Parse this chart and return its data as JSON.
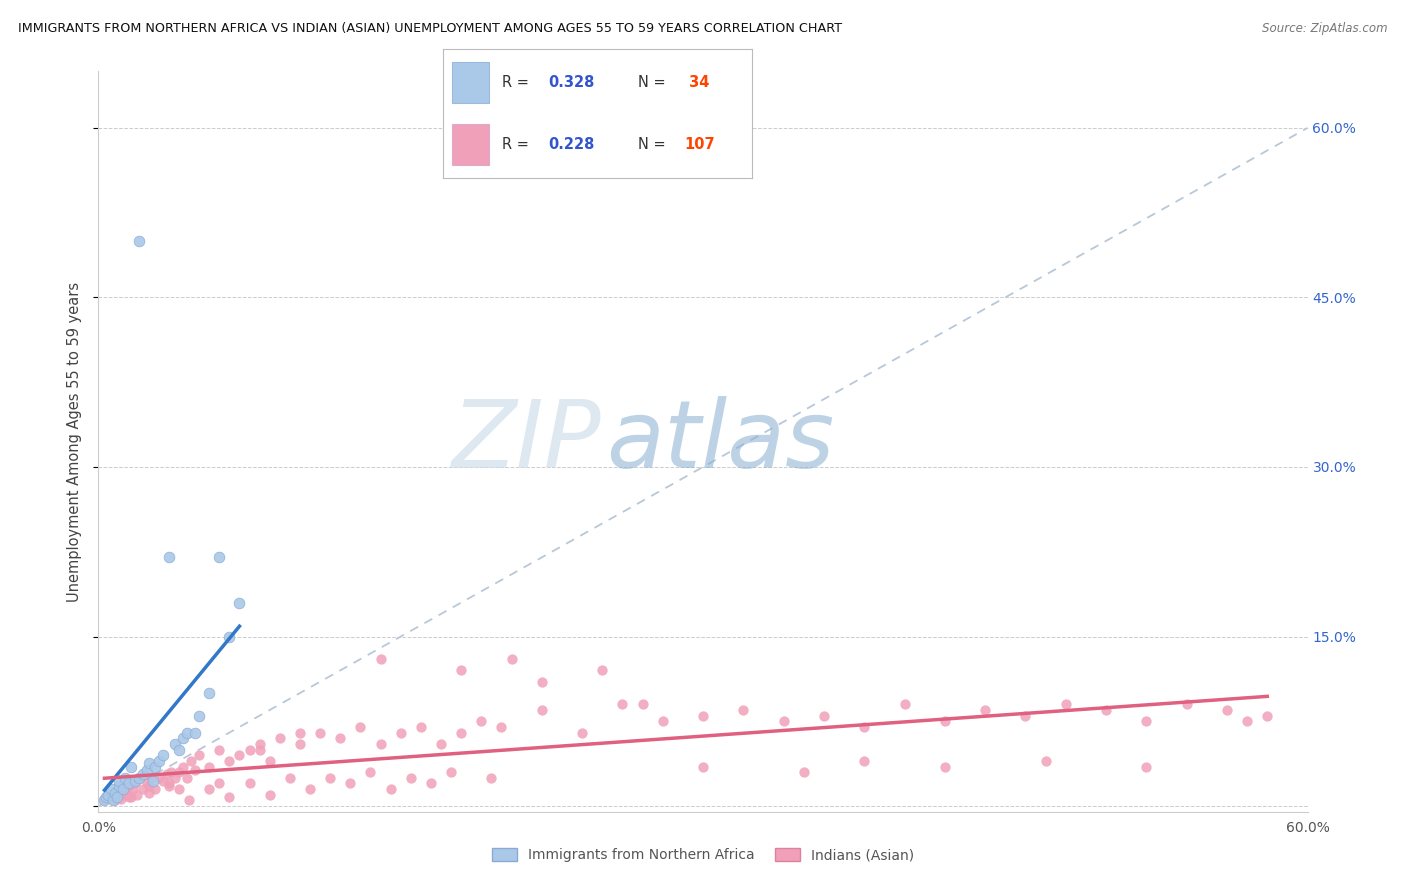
{
  "title": "IMMIGRANTS FROM NORTHERN AFRICA VS INDIAN (ASIAN) UNEMPLOYMENT AMONG AGES 55 TO 59 YEARS CORRELATION CHART",
  "source": "Source: ZipAtlas.com",
  "ylabel": "Unemployment Among Ages 55 to 59 years",
  "y_tick_vals": [
    0.0,
    0.15,
    0.3,
    0.45,
    0.6
  ],
  "y_tick_labels": [
    "",
    "15.0%",
    "30.0%",
    "45.0%",
    "60.0%"
  ],
  "x_lim": [
    0,
    0.6
  ],
  "y_lim": [
    -0.005,
    0.65
  ],
  "blue_R": 0.328,
  "blue_N": 34,
  "pink_R": 0.228,
  "pink_N": 107,
  "blue_label": "Immigrants from Northern Africa",
  "pink_label": "Indians (Asian)",
  "blue_color": "#aac8e8",
  "blue_edge_color": "#88aad4",
  "pink_color": "#f0a0b8",
  "pink_edge_color": "#e080a0",
  "blue_line_color": "#3378c8",
  "pink_line_color": "#e06080",
  "diag_color": "#b8c8d8",
  "watermark_zip": "#c8d8e8",
  "watermark_atlas": "#90b8d8",
  "legend_R_color": "#3355cc",
  "legend_N_color": "#ff4400",
  "blue_scatter_x": [
    0.003,
    0.004,
    0.005,
    0.006,
    0.007,
    0.008,
    0.009,
    0.01,
    0.01,
    0.012,
    0.013,
    0.015,
    0.016,
    0.018,
    0.02,
    0.02,
    0.022,
    0.024,
    0.025,
    0.027,
    0.028,
    0.03,
    0.032,
    0.035,
    0.038,
    0.04,
    0.042,
    0.044,
    0.048,
    0.05,
    0.055,
    0.06,
    0.065,
    0.07
  ],
  "blue_scatter_y": [
    0.005,
    0.008,
    0.01,
    0.015,
    0.005,
    0.012,
    0.008,
    0.018,
    0.022,
    0.015,
    0.025,
    0.02,
    0.035,
    0.022,
    0.025,
    0.5,
    0.028,
    0.032,
    0.038,
    0.022,
    0.035,
    0.04,
    0.045,
    0.22,
    0.055,
    0.05,
    0.06,
    0.065,
    0.065,
    0.08,
    0.1,
    0.22,
    0.15,
    0.18
  ],
  "pink_scatter_x": [
    0.003,
    0.005,
    0.007,
    0.008,
    0.009,
    0.01,
    0.011,
    0.012,
    0.013,
    0.014,
    0.015,
    0.016,
    0.017,
    0.018,
    0.019,
    0.02,
    0.022,
    0.024,
    0.025,
    0.026,
    0.028,
    0.03,
    0.032,
    0.034,
    0.035,
    0.036,
    0.038,
    0.04,
    0.042,
    0.044,
    0.046,
    0.048,
    0.05,
    0.055,
    0.06,
    0.065,
    0.07,
    0.075,
    0.08,
    0.085,
    0.09,
    0.1,
    0.11,
    0.12,
    0.13,
    0.14,
    0.15,
    0.16,
    0.17,
    0.18,
    0.19,
    0.2,
    0.22,
    0.24,
    0.26,
    0.28,
    0.3,
    0.32,
    0.34,
    0.36,
    0.38,
    0.4,
    0.42,
    0.44,
    0.46,
    0.48,
    0.5,
    0.52,
    0.54,
    0.56,
    0.58,
    0.008,
    0.015,
    0.025,
    0.035,
    0.045,
    0.055,
    0.065,
    0.075,
    0.085,
    0.095,
    0.105,
    0.115,
    0.125,
    0.135,
    0.145,
    0.155,
    0.165,
    0.175,
    0.195,
    0.205,
    0.25,
    0.3,
    0.35,
    0.38,
    0.42,
    0.47,
    0.52,
    0.57,
    0.04,
    0.06,
    0.08,
    0.1,
    0.14,
    0.18,
    0.22,
    0.27
  ],
  "pink_scatter_y": [
    0.005,
    0.008,
    0.005,
    0.01,
    0.008,
    0.012,
    0.006,
    0.015,
    0.01,
    0.012,
    0.018,
    0.008,
    0.015,
    0.02,
    0.01,
    0.025,
    0.015,
    0.02,
    0.018,
    0.025,
    0.015,
    0.025,
    0.022,
    0.028,
    0.02,
    0.03,
    0.025,
    0.03,
    0.035,
    0.025,
    0.04,
    0.032,
    0.045,
    0.035,
    0.05,
    0.04,
    0.045,
    0.05,
    0.055,
    0.04,
    0.06,
    0.055,
    0.065,
    0.06,
    0.07,
    0.055,
    0.065,
    0.07,
    0.055,
    0.065,
    0.075,
    0.07,
    0.085,
    0.065,
    0.09,
    0.075,
    0.08,
    0.085,
    0.075,
    0.08,
    0.07,
    0.09,
    0.075,
    0.085,
    0.08,
    0.09,
    0.085,
    0.075,
    0.09,
    0.085,
    0.08,
    0.005,
    0.008,
    0.012,
    0.018,
    0.005,
    0.015,
    0.008,
    0.02,
    0.01,
    0.025,
    0.015,
    0.025,
    0.02,
    0.03,
    0.015,
    0.025,
    0.02,
    0.03,
    0.025,
    0.13,
    0.12,
    0.035,
    0.03,
    0.04,
    0.035,
    0.04,
    0.035,
    0.075,
    0.015,
    0.02,
    0.05,
    0.065,
    0.13,
    0.12,
    0.11,
    0.09
  ]
}
